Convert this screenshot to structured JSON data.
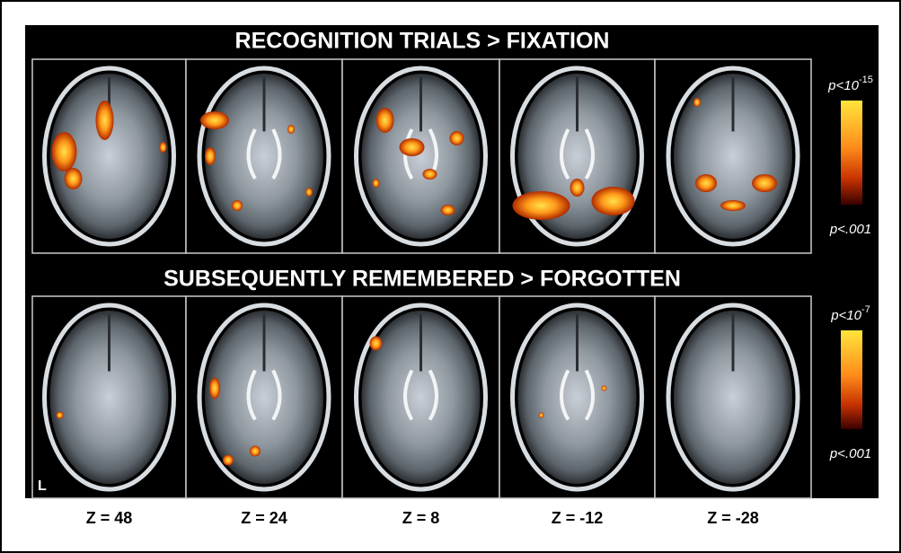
{
  "rows": [
    {
      "title": "RECOGNITION TRIALS > FIXATION",
      "scale": {
        "top": {
          "base": "p<10",
          "exponent": "-15"
        },
        "bottom": "p<.001"
      }
    },
    {
      "title": "SUBSEQUENTLY REMEMBERED > FORGOTTEN",
      "scale": {
        "top": {
          "base": "p<10",
          "exponent": "-7"
        },
        "bottom": "p<.001"
      }
    }
  ],
  "orientation_label": "L",
  "slice_labels": [
    "Z = 48",
    "Z = 24",
    "Z = 8",
    "Z = -12",
    "Z = -28"
  ]
}
